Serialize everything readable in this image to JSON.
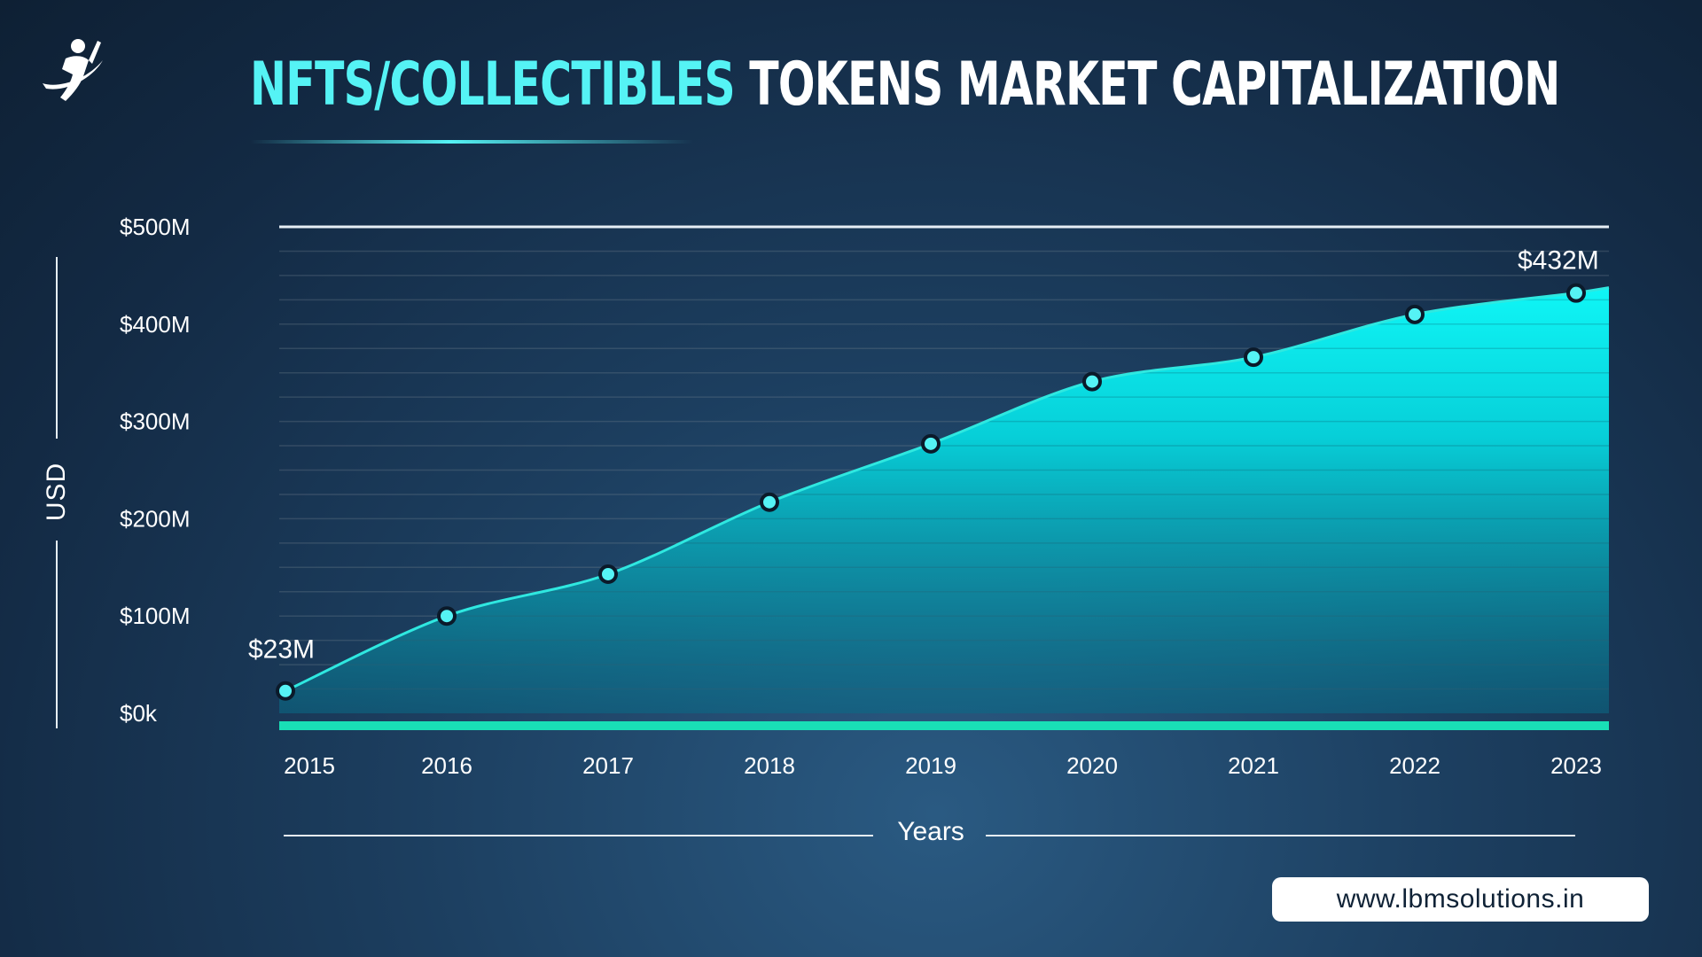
{
  "title": {
    "accent": "NFTS/COLLECTIBLES",
    "rest": "TOKENS MARKET CAPITALIZATION"
  },
  "logo_icon": "person-swoosh-logo-icon",
  "website": "www.lbmsolutions.in",
  "colors": {
    "accent": "#55f3f5",
    "line": "#2fe8e0",
    "baseline": "#19dfb6",
    "background": "#163250"
  },
  "chart_data": {
    "type": "area",
    "title": "NFTS/COLLECTIBLES TOKENS MARKET CAPITALIZATION",
    "xlabel": "Years",
    "ylabel": "USD",
    "categories": [
      "2015",
      "2016",
      "2017",
      "2018",
      "2019",
      "2020",
      "2021",
      "2022",
      "2023"
    ],
    "values": [
      23,
      100,
      143,
      217,
      277,
      341,
      366,
      410,
      432
    ],
    "ylim": [
      0,
      500
    ],
    "y_ticks": [
      {
        "value": 500,
        "label": "$500M"
      },
      {
        "value": 400,
        "label": "$400M"
      },
      {
        "value": 300,
        "label": "$300M"
      },
      {
        "value": 200,
        "label": "$200M"
      },
      {
        "value": 100,
        "label": "$100M"
      },
      {
        "value": 0,
        "label": "$0k"
      }
    ],
    "annotations": [
      {
        "index": 0,
        "text": "$23M"
      },
      {
        "index": 8,
        "text": "$432M"
      }
    ],
    "grid": true,
    "legend": "none"
  }
}
